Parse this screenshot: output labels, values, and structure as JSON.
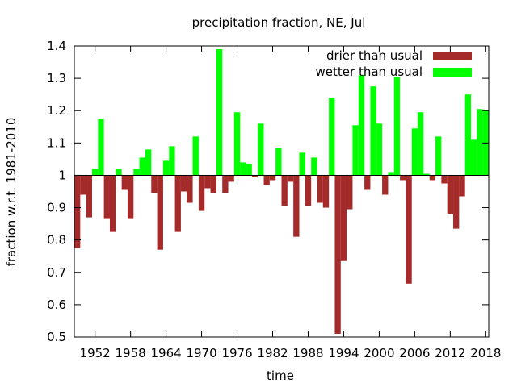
{
  "chart_data": {
    "type": "bar",
    "title": "precipitation fraction, NE, Jul",
    "xlabel": "time",
    "ylabel": "fraction w.r.t. 1981-2010",
    "xlim": [
      1948.5,
      2018.5
    ],
    "ylim": [
      0.5,
      1.4
    ],
    "baseline": 1.0,
    "x_ticks": [
      1952,
      1958,
      1964,
      1970,
      1976,
      1982,
      1988,
      1994,
      2000,
      2006,
      2012,
      2018
    ],
    "y_ticks": [
      0.5,
      0.6,
      0.7,
      0.8,
      0.9,
      1.0,
      1.1,
      1.2,
      1.3,
      1.4
    ],
    "y_tick_labels": [
      "0.5",
      "0.6",
      "0.7",
      "0.8",
      "0.9",
      "1",
      "1.1",
      "1.2",
      "1.3",
      "1.4"
    ],
    "legend_position": "top-right",
    "series": [
      {
        "name": "drier than usual",
        "color": "#a52a2a"
      },
      {
        "name": "wetter than usual",
        "color": "#00ff00"
      }
    ],
    "years": [
      1949,
      1950,
      1951,
      1952,
      1953,
      1954,
      1955,
      1956,
      1957,
      1958,
      1959,
      1960,
      1961,
      1962,
      1963,
      1964,
      1965,
      1966,
      1967,
      1968,
      1969,
      1970,
      1971,
      1972,
      1973,
      1974,
      1975,
      1976,
      1977,
      1978,
      1979,
      1980,
      1981,
      1982,
      1983,
      1984,
      1985,
      1986,
      1987,
      1988,
      1989,
      1990,
      1991,
      1992,
      1993,
      1994,
      1995,
      1996,
      1997,
      1998,
      1999,
      2000,
      2001,
      2002,
      2003,
      2004,
      2005,
      2006,
      2007,
      2008,
      2009,
      2010,
      2011,
      2012,
      2013,
      2014,
      2015,
      2016,
      2017,
      2018
    ],
    "values": [
      0.775,
      0.94,
      0.87,
      1.02,
      1.175,
      0.865,
      0.825,
      1.02,
      0.955,
      0.865,
      1.02,
      1.055,
      1.08,
      0.945,
      0.77,
      1.045,
      1.09,
      0.825,
      0.95,
      0.915,
      1.12,
      0.89,
      0.96,
      0.945,
      1.39,
      0.945,
      0.98,
      1.195,
      1.04,
      1.035,
      0.995,
      1.16,
      0.97,
      0.985,
      1.085,
      0.905,
      0.98,
      0.81,
      1.07,
      0.905,
      1.055,
      0.915,
      0.9,
      1.24,
      0.51,
      0.735,
      0.895,
      1.155,
      1.31,
      0.955,
      1.275,
      1.16,
      0.94,
      1.01,
      1.305,
      0.985,
      0.665,
      1.145,
      1.195,
      1.005,
      0.985,
      1.12,
      0.975,
      0.88,
      0.835,
      0.935,
      1.25,
      1.11,
      1.205,
      1.2
    ]
  }
}
